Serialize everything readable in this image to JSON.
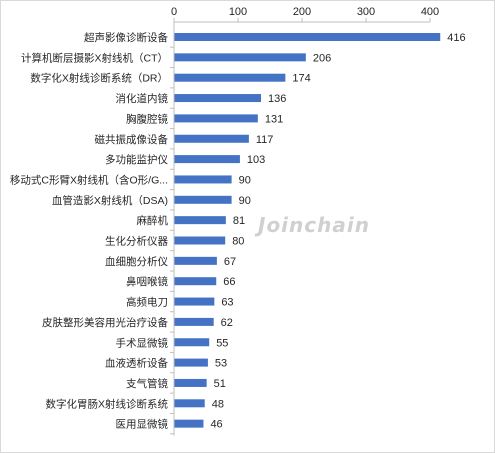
{
  "watermark": "Joinchain",
  "chart_data": {
    "type": "bar",
    "orientation": "horizontal",
    "title": "",
    "xlabel": "",
    "ylabel": "",
    "xlim": [
      0,
      400
    ],
    "xticks": [
      0,
      100,
      200,
      300,
      400
    ],
    "x_axis_position": "top",
    "grid": false,
    "legend": "none",
    "bar_color": "#4472c4",
    "categories": [
      "超声影像诊断设备",
      "计算机断层摄影X射线机（CT）",
      "数字化X射线诊断系统（DR）",
      "消化道内镜",
      "胸腹腔镜",
      "磁共振成像设备",
      "多功能监护仪",
      "移动式C形臂X射线机（含O形/G...",
      "血管造影X射线机（DSA)",
      "麻醉机",
      "生化分析仪器",
      "血细胞分析仪",
      "鼻咽喉镜",
      "高频电刀",
      "皮肤整形美容用光治疗设备",
      "手术显微镜",
      "血液透析设备",
      "支气管镜",
      "数字化胃肠X射线诊断系统",
      "医用显微镜"
    ],
    "values": [
      416,
      206,
      174,
      136,
      131,
      117,
      103,
      90,
      90,
      81,
      80,
      67,
      66,
      63,
      62,
      55,
      53,
      51,
      48,
      46
    ]
  }
}
